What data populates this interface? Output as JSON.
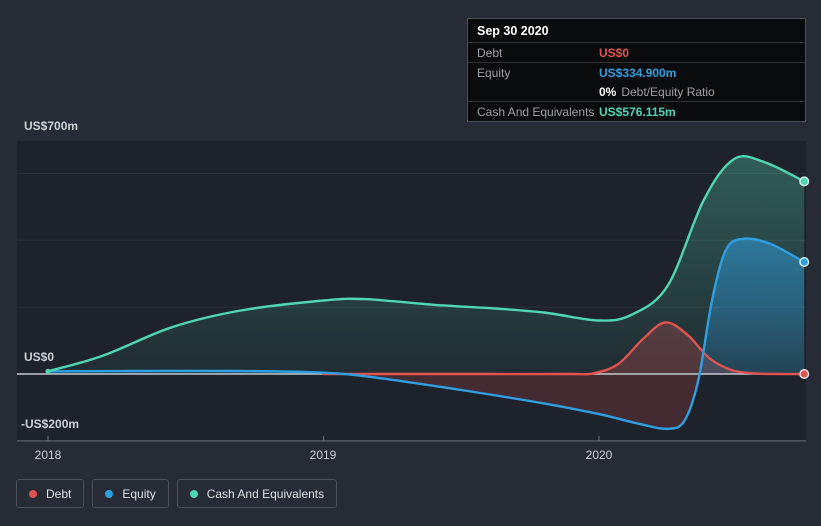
{
  "tooltip": {
    "date": "Sep 30 2020",
    "debt_label": "Debt",
    "debt_value": "US$0",
    "equity_label": "Equity",
    "equity_value": "US$334.900m",
    "ratio_value": "0%",
    "ratio_suffix": "Debt/Equity Ratio",
    "cash_label": "Cash And Equivalents",
    "cash_value": "US$576.115m"
  },
  "axis": {
    "y_top": "US$700m",
    "y_zero": "US$0",
    "y_neg": "-US$200m",
    "x_2018": "2018",
    "x_2019": "2019",
    "x_2020": "2020"
  },
  "legend": {
    "debt": "Debt",
    "equity": "Equity",
    "cash": "Cash And Equivalents"
  },
  "colors": {
    "debt": "#e25350",
    "equity": "#2f9fe2",
    "cash": "#4fd6b5",
    "grid": "#2d333e",
    "zero_line": "#c3c8ce",
    "axis_line": "#6e747d",
    "plot_bg": "#1d222b",
    "page_bg": "#262b35",
    "tooltip_bg": "#0a0b0d"
  },
  "chart_data": {
    "type": "area",
    "title": "Debt to Equity history",
    "unit": "US$ millions",
    "x_ticks": [
      2018,
      2019,
      2020
    ],
    "y_gridlines": [
      700,
      600,
      400,
      200,
      0,
      -200
    ],
    "ylim": [
      -200,
      700
    ],
    "hover_point": {
      "date": "Sep 30 2020",
      "debt": 0,
      "equity": 334.9,
      "cash": 576.115,
      "debt_equity_ratio_pct": 0
    },
    "series": [
      {
        "name": "Debt",
        "key": "debt",
        "color": "#e25350",
        "points": [
          [
            2019.0,
            0
          ],
          [
            2019.3,
            0
          ],
          [
            2019.6,
            0
          ],
          [
            2019.9,
            0
          ],
          [
            2019.98,
            2
          ],
          [
            2020.07,
            30
          ],
          [
            2020.16,
            105
          ],
          [
            2020.24,
            154
          ],
          [
            2020.32,
            118
          ],
          [
            2020.4,
            48
          ],
          [
            2020.48,
            12
          ],
          [
            2020.56,
            2
          ],
          [
            2020.65,
            0
          ],
          [
            2020.745,
            0
          ]
        ]
      },
      {
        "name": "Equity",
        "key": "equity",
        "color": "#2f9fe2",
        "points": [
          [
            2018.0,
            8
          ],
          [
            2018.3,
            9
          ],
          [
            2018.7,
            9
          ],
          [
            2019.0,
            4
          ],
          [
            2019.2,
            -12
          ],
          [
            2019.5,
            -48
          ],
          [
            2019.8,
            -88
          ],
          [
            2020.0,
            -120
          ],
          [
            2020.15,
            -150
          ],
          [
            2020.25,
            -164
          ],
          [
            2020.31,
            -140
          ],
          [
            2020.36,
            -20
          ],
          [
            2020.41,
            220
          ],
          [
            2020.46,
            370
          ],
          [
            2020.52,
            404
          ],
          [
            2020.62,
            390
          ],
          [
            2020.745,
            334.9
          ]
        ]
      },
      {
        "name": "Cash And Equivalents",
        "key": "cash",
        "color": "#4fd6b5",
        "points": [
          [
            2018.0,
            8
          ],
          [
            2018.2,
            55
          ],
          [
            2018.45,
            140
          ],
          [
            2018.7,
            190
          ],
          [
            2019.0,
            220
          ],
          [
            2019.15,
            224
          ],
          [
            2019.4,
            207
          ],
          [
            2019.6,
            197
          ],
          [
            2019.8,
            184
          ],
          [
            2020.0,
            160
          ],
          [
            2020.12,
            178
          ],
          [
            2020.25,
            265
          ],
          [
            2020.38,
            520
          ],
          [
            2020.49,
            643
          ],
          [
            2020.6,
            634
          ],
          [
            2020.745,
            576.115
          ]
        ]
      }
    ]
  }
}
